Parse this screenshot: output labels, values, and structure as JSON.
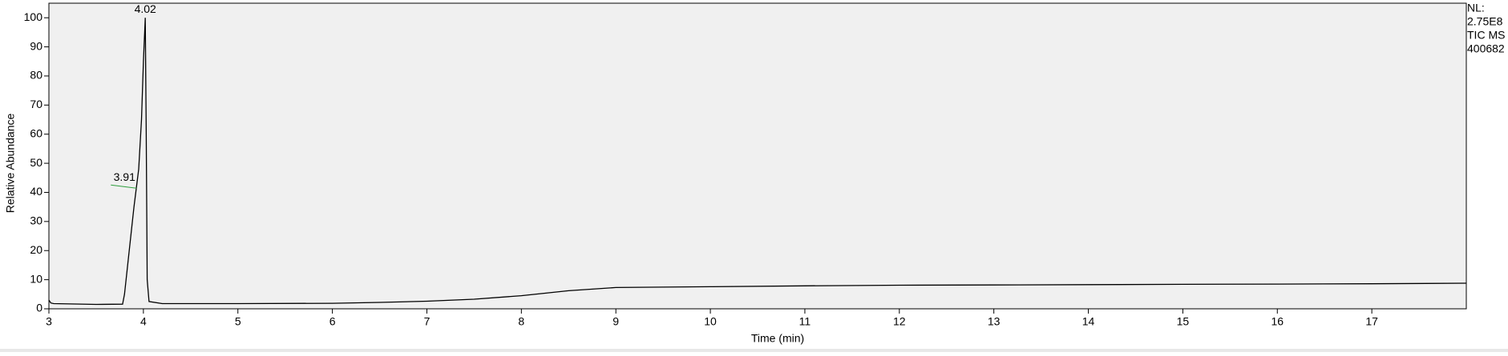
{
  "chart_data": {
    "type": "line",
    "xlabel": "Time (min)",
    "ylabel": "Relative Abundance",
    "info": [
      "NL:",
      "2.75E8",
      "TIC  MS",
      "400682"
    ],
    "xlim": [
      3,
      18
    ],
    "xticks": [
      3,
      4,
      5,
      6,
      7,
      8,
      9,
      10,
      11,
      12,
      13,
      14,
      15,
      16,
      17
    ],
    "ylim": [
      0,
      105
    ],
    "yticks": [
      0,
      10,
      20,
      30,
      40,
      50,
      60,
      70,
      80,
      90,
      100
    ],
    "series": [
      {
        "color": "#000000",
        "x": [
          3.0,
          3.02,
          3.05,
          3.5,
          3.78,
          3.8,
          3.85,
          3.9,
          3.95,
          3.98,
          4.0,
          4.02,
          4.03,
          4.04,
          4.06,
          4.2,
          5,
          6,
          6.5,
          7,
          7.5,
          8,
          8.5,
          9,
          10,
          11,
          12,
          13,
          14,
          15,
          16,
          17,
          18
        ],
        "values": [
          3,
          2,
          1.8,
          1.5,
          1.6,
          5,
          20,
          35,
          48,
          65,
          85,
          100,
          60,
          10,
          2.5,
          1.8,
          1.8,
          1.9,
          2.2,
          2.6,
          3.3,
          4.5,
          6.2,
          7.3,
          7.6,
          7.9,
          8.1,
          8.2,
          8.3,
          8.4,
          8.5,
          8.6,
          8.8
        ]
      }
    ],
    "annotations": [
      {
        "x": 4.02,
        "y": 100,
        "color": "#000000"
      },
      {
        "x": 3.91,
        "y": 42,
        "color": "#2e9e3e"
      }
    ]
  }
}
